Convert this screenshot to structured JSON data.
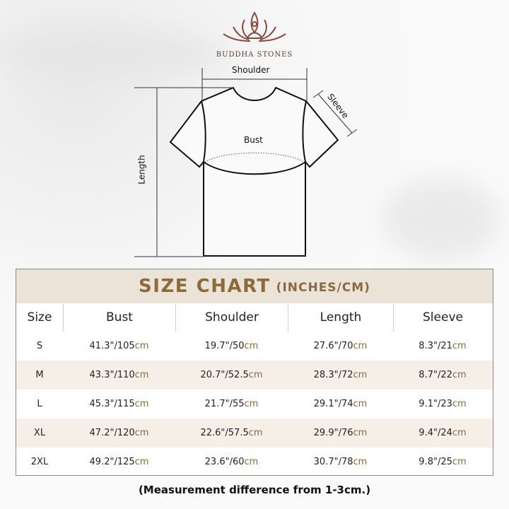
{
  "brand": {
    "name": "BUDDHA STONES",
    "accent": "#8b4a3a"
  },
  "diagram": {
    "shoulder": "Shoulder",
    "sleeve": "Sleeve",
    "bust": "Bust",
    "length": "Length"
  },
  "chart": {
    "title": "SIZE CHART",
    "units": "(INCHES/CM)",
    "title_color": "#8b6a3c",
    "headers": [
      "Size",
      "Bust",
      "Shoulder",
      "Length",
      "Sleeve"
    ],
    "rows": [
      {
        "size": "S",
        "values": [
          {
            "in": "41.3\"/105",
            "cm": "cm"
          },
          {
            "in": "19.7\"/50",
            "cm": "cm"
          },
          {
            "in": "27.6\"/70",
            "cm": "cm"
          },
          {
            "in": "8.3\"/21",
            "cm": "cm"
          }
        ]
      },
      {
        "size": "M",
        "values": [
          {
            "in": "43.3\"/110",
            "cm": "cm"
          },
          {
            "in": "20.7\"/52.5",
            "cm": "cm"
          },
          {
            "in": "28.3\"/72",
            "cm": "cm"
          },
          {
            "in": "8.7\"/22",
            "cm": "cm"
          }
        ]
      },
      {
        "size": "L",
        "values": [
          {
            "in": "45.3\"/115",
            "cm": "cm"
          },
          {
            "in": "21.7\"/55",
            "cm": "cm"
          },
          {
            "in": "29.1\"/74",
            "cm": "cm"
          },
          {
            "in": "9.1\"/23",
            "cm": "cm"
          }
        ]
      },
      {
        "size": "XL",
        "values": [
          {
            "in": "47.2\"/120",
            "cm": "cm"
          },
          {
            "in": "22.6\"/57.5",
            "cm": "cm"
          },
          {
            "in": "29.9\"/76",
            "cm": "cm"
          },
          {
            "in": "9.4\"/24",
            "cm": "cm"
          }
        ]
      },
      {
        "size": "2XL",
        "values": [
          {
            "in": "49.2\"/125",
            "cm": "cm"
          },
          {
            "in": "23.6\"/60",
            "cm": "cm"
          },
          {
            "in": "30.7\"/78",
            "cm": "cm"
          },
          {
            "in": "9.8\"/25",
            "cm": "cm"
          }
        ]
      }
    ]
  },
  "note": "(Measurement difference from 1-3cm.)"
}
